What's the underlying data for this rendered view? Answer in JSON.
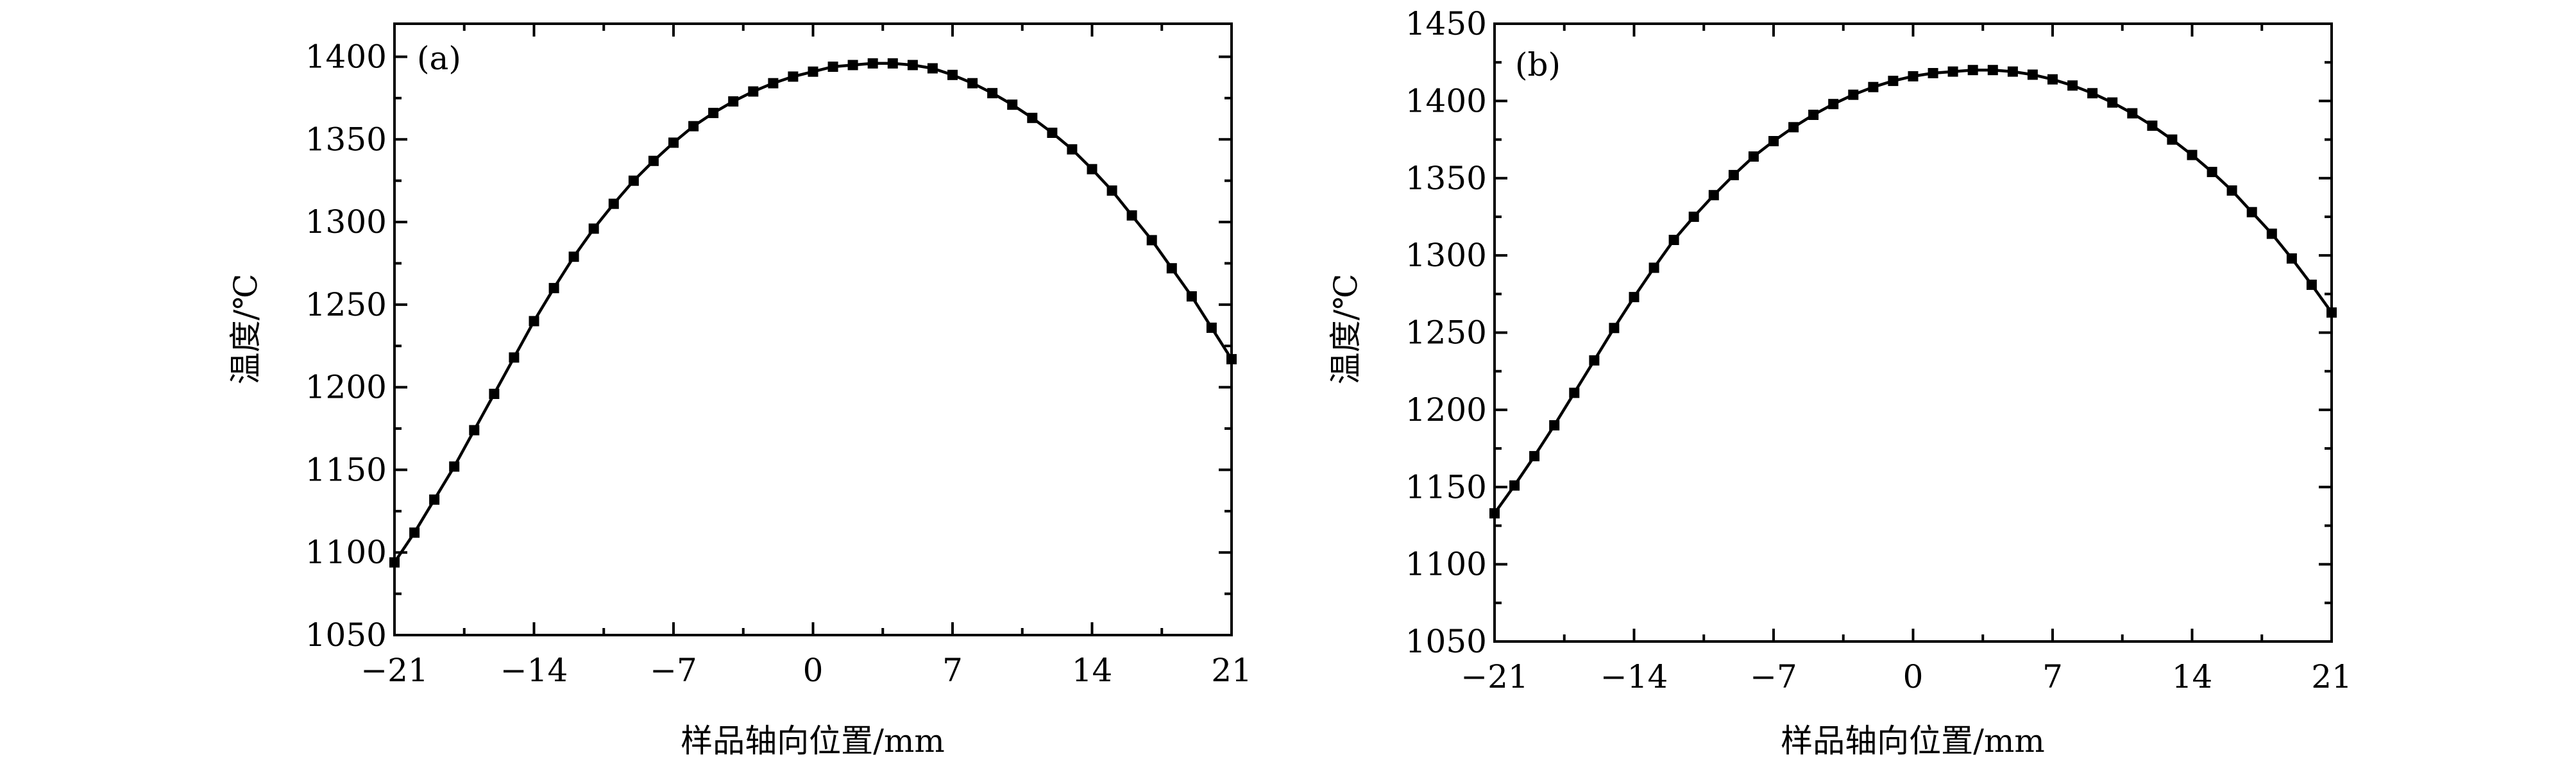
{
  "chart_data": [
    {
      "type": "line",
      "panel_label": "(a)",
      "xlabel": "样品轴向位置/mm",
      "ylabel": "温度/℃",
      "xlim": [
        -21,
        21
      ],
      "ylim": [
        1050,
        1420
      ],
      "xticks": [
        -21,
        -14,
        -7,
        0,
        7,
        14,
        21
      ],
      "xtick_labels": [
        "−21",
        "−14",
        "−7",
        "0",
        "7",
        "14",
        "21"
      ],
      "yticks": [
        1050,
        1100,
        1150,
        1200,
        1250,
        1300,
        1350,
        1400
      ],
      "ytick_labels": [
        "1050",
        "1100",
        "1150",
        "1200",
        "1250",
        "1300",
        "1350",
        "1400"
      ],
      "grid": false,
      "marker": "square",
      "series": [
        {
          "x": [
            -21,
            -20,
            -19,
            -18,
            -17,
            -16,
            -15,
            -14,
            -13,
            -12,
            -11,
            -10,
            -9,
            -8,
            -7,
            -6,
            -5,
            -4,
            -3,
            -2,
            -1,
            0,
            1,
            2,
            3,
            4,
            5,
            6,
            7,
            8,
            9,
            10,
            11,
            12,
            13,
            14,
            15,
            16,
            17,
            18,
            19,
            20,
            21
          ],
          "y": [
            1094,
            1112,
            1132,
            1152,
            1174,
            1196,
            1218,
            1240,
            1260,
            1279,
            1296,
            1311,
            1325,
            1337,
            1348,
            1358,
            1366,
            1373,
            1379,
            1384,
            1388,
            1391,
            1394,
            1395,
            1396,
            1396,
            1395,
            1393,
            1389,
            1384,
            1378,
            1371,
            1363,
            1354,
            1344,
            1332,
            1319,
            1304,
            1289,
            1272,
            1255,
            1236,
            1217
          ]
        }
      ]
    },
    {
      "type": "line",
      "panel_label": "(b)",
      "xlabel": "样品轴向位置/mm",
      "ylabel": "温度/℃",
      "xlim": [
        -21,
        21
      ],
      "ylim": [
        1050,
        1450
      ],
      "xticks": [
        -21,
        -14,
        -7,
        0,
        7,
        14,
        21
      ],
      "xtick_labels": [
        "−21",
        "−14",
        "−7",
        "0",
        "7",
        "14",
        "21"
      ],
      "yticks": [
        1050,
        1100,
        1150,
        1200,
        1250,
        1300,
        1350,
        1400,
        1450
      ],
      "ytick_labels": [
        "1050",
        "1100",
        "1150",
        "1200",
        "1250",
        "1300",
        "1350",
        "1400",
        "1450"
      ],
      "grid": false,
      "marker": "square",
      "series": [
        {
          "x": [
            -21,
            -20,
            -19,
            -18,
            -17,
            -16,
            -15,
            -14,
            -13,
            -12,
            -11,
            -10,
            -9,
            -8,
            -7,
            -6,
            -5,
            -4,
            -3,
            -2,
            -1,
            0,
            1,
            2,
            3,
            4,
            5,
            6,
            7,
            8,
            9,
            10,
            11,
            12,
            13,
            14,
            15,
            16,
            17,
            18,
            19,
            20,
            21
          ],
          "y": [
            1133,
            1151,
            1170,
            1190,
            1211,
            1232,
            1253,
            1273,
            1292,
            1310,
            1325,
            1339,
            1352,
            1364,
            1374,
            1383,
            1391,
            1398,
            1404,
            1409,
            1413,
            1416,
            1418,
            1419,
            1420,
            1420,
            1419,
            1417,
            1414,
            1410,
            1405,
            1399,
            1392,
            1384,
            1375,
            1365,
            1354,
            1342,
            1328,
            1314,
            1298,
            1281,
            1263
          ]
        }
      ]
    }
  ]
}
